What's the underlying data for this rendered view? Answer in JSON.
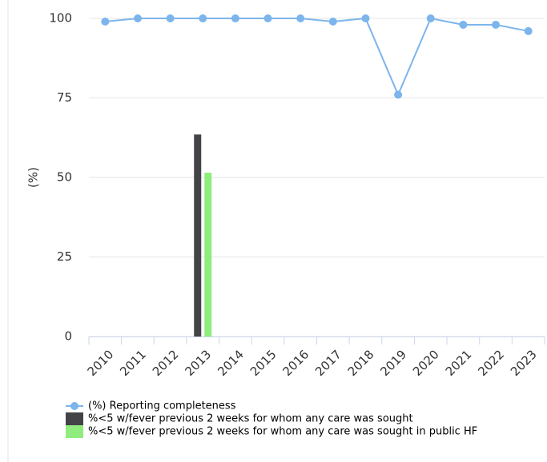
{
  "chart_data": {
    "type": "combo",
    "ylabel": "(%)",
    "categories": [
      "2010",
      "2011",
      "2012",
      "2013",
      "2014",
      "2015",
      "2016",
      "2017",
      "2018",
      "2019",
      "2020",
      "2021",
      "2022",
      "2023"
    ],
    "series": [
      {
        "name": "(%) Reporting completeness",
        "type": "line",
        "color": "#7cb5ec",
        "values": [
          99,
          100,
          100,
          100,
          100,
          100,
          100,
          99,
          100,
          76,
          100,
          98,
          98,
          96
        ]
      },
      {
        "name": "%<5 w/fever previous 2 weeks for whom any care was sought",
        "type": "bar",
        "color": "#434348",
        "values": [
          null,
          null,
          null,
          63.5,
          null,
          null,
          null,
          null,
          null,
          null,
          null,
          null,
          null,
          null
        ]
      },
      {
        "name": "%<5 w/fever previous 2 weeks for whom any care was sought in public HF",
        "type": "bar",
        "color": "#90ed7d",
        "values": [
          null,
          null,
          null,
          51.5,
          null,
          null,
          null,
          null,
          null,
          null,
          null,
          null,
          null,
          null
        ]
      }
    ],
    "ylim": [
      0,
      100
    ],
    "yticks": [
      0,
      25,
      50,
      75,
      100
    ],
    "grid": true
  }
}
